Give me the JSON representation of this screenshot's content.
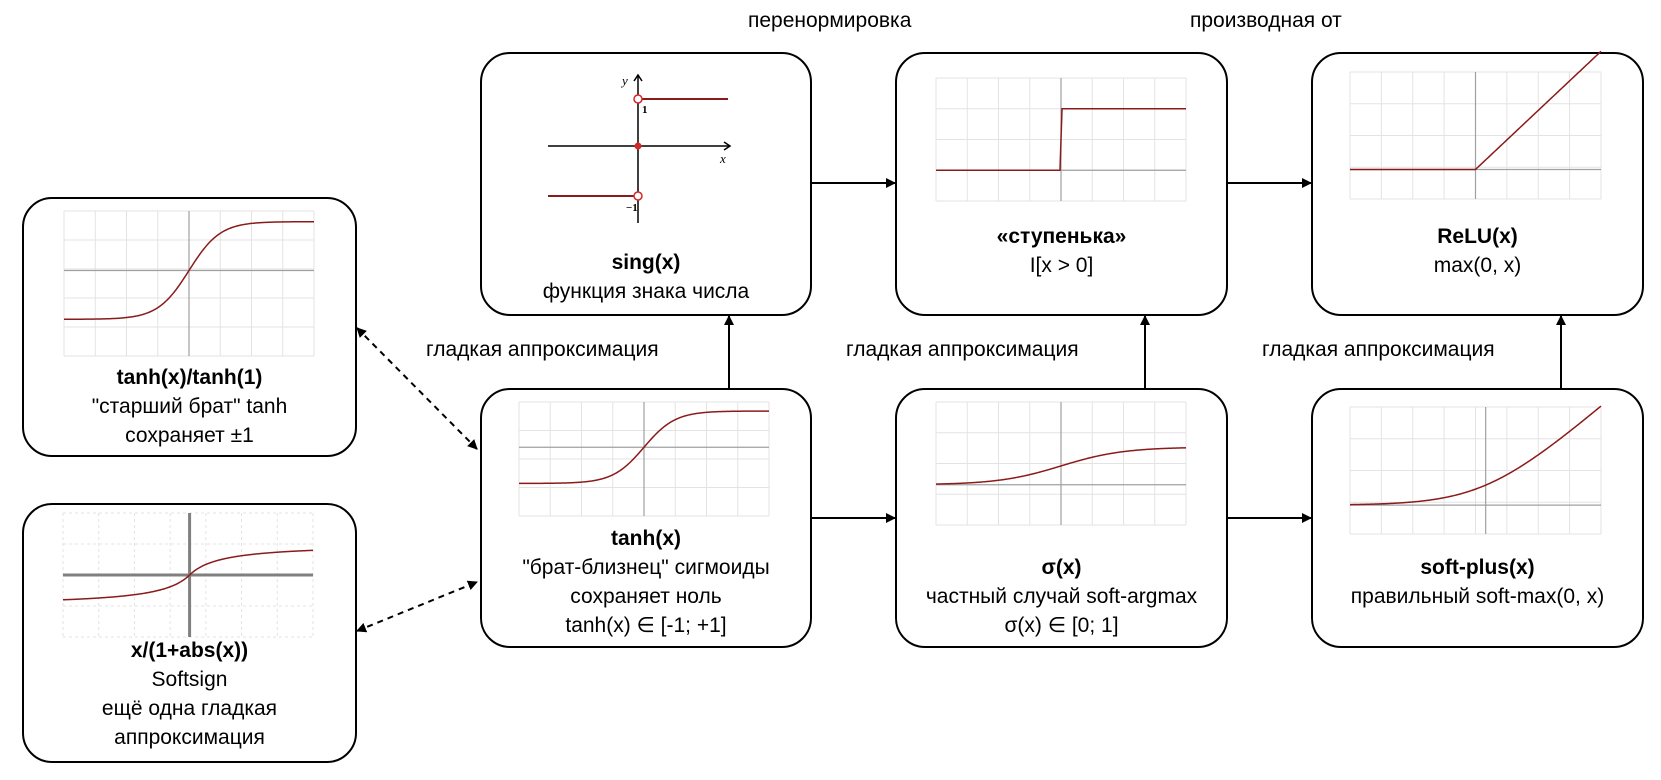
{
  "edges": {
    "renorm": "перенормировка",
    "derivative": "производная от",
    "smooth_1": "гладкая аппроксимация",
    "smooth_2": "гладкая аппроксимация",
    "smooth_3": "гладкая аппроксимация"
  },
  "nodes": {
    "sign": {
      "title": "sing(x)",
      "lines": [
        "функция знака числа"
      ]
    },
    "step": {
      "title": "«ступенька»",
      "lines": [
        "I[x > 0]"
      ]
    },
    "relu": {
      "title": "ReLU(x)",
      "lines": [
        "max(0, x)"
      ]
    },
    "tanh_n": {
      "title": "tanh(x)/tanh(1)",
      "lines": [
        "\"старший брат\" tanh",
        "сохраняет ±1"
      ]
    },
    "tanh": {
      "title": "tanh(x)",
      "lines": [
        "\"брат-близнец\" сигмоиды",
        "сохраняет ноль",
        "tanh(x) ∈ [-1; +1]"
      ]
    },
    "sigmoid": {
      "title": "σ(x)",
      "lines": [
        "частный случай soft-argmax",
        "σ(x) ∈ [0; 1]"
      ]
    },
    "softplus": {
      "title": "soft-plus(x)",
      "lines": [
        "правильный soft-max(0, x)"
      ]
    },
    "softsign": {
      "title": "x/(1+abs(x))",
      "lines": [
        "Softsign",
        "ещё одна гладкая",
        "аппроксимация"
      ]
    }
  },
  "sign_plot": {
    "y_axis": "y",
    "x_axis": "x",
    "tick_pos": "1",
    "tick_neg": "−1"
  },
  "colors": {
    "curve": "#8b1a1a",
    "point": "#d62728",
    "grid": "#e3e3e3",
    "axis": "#a0a0a0",
    "line": "#000000"
  }
}
